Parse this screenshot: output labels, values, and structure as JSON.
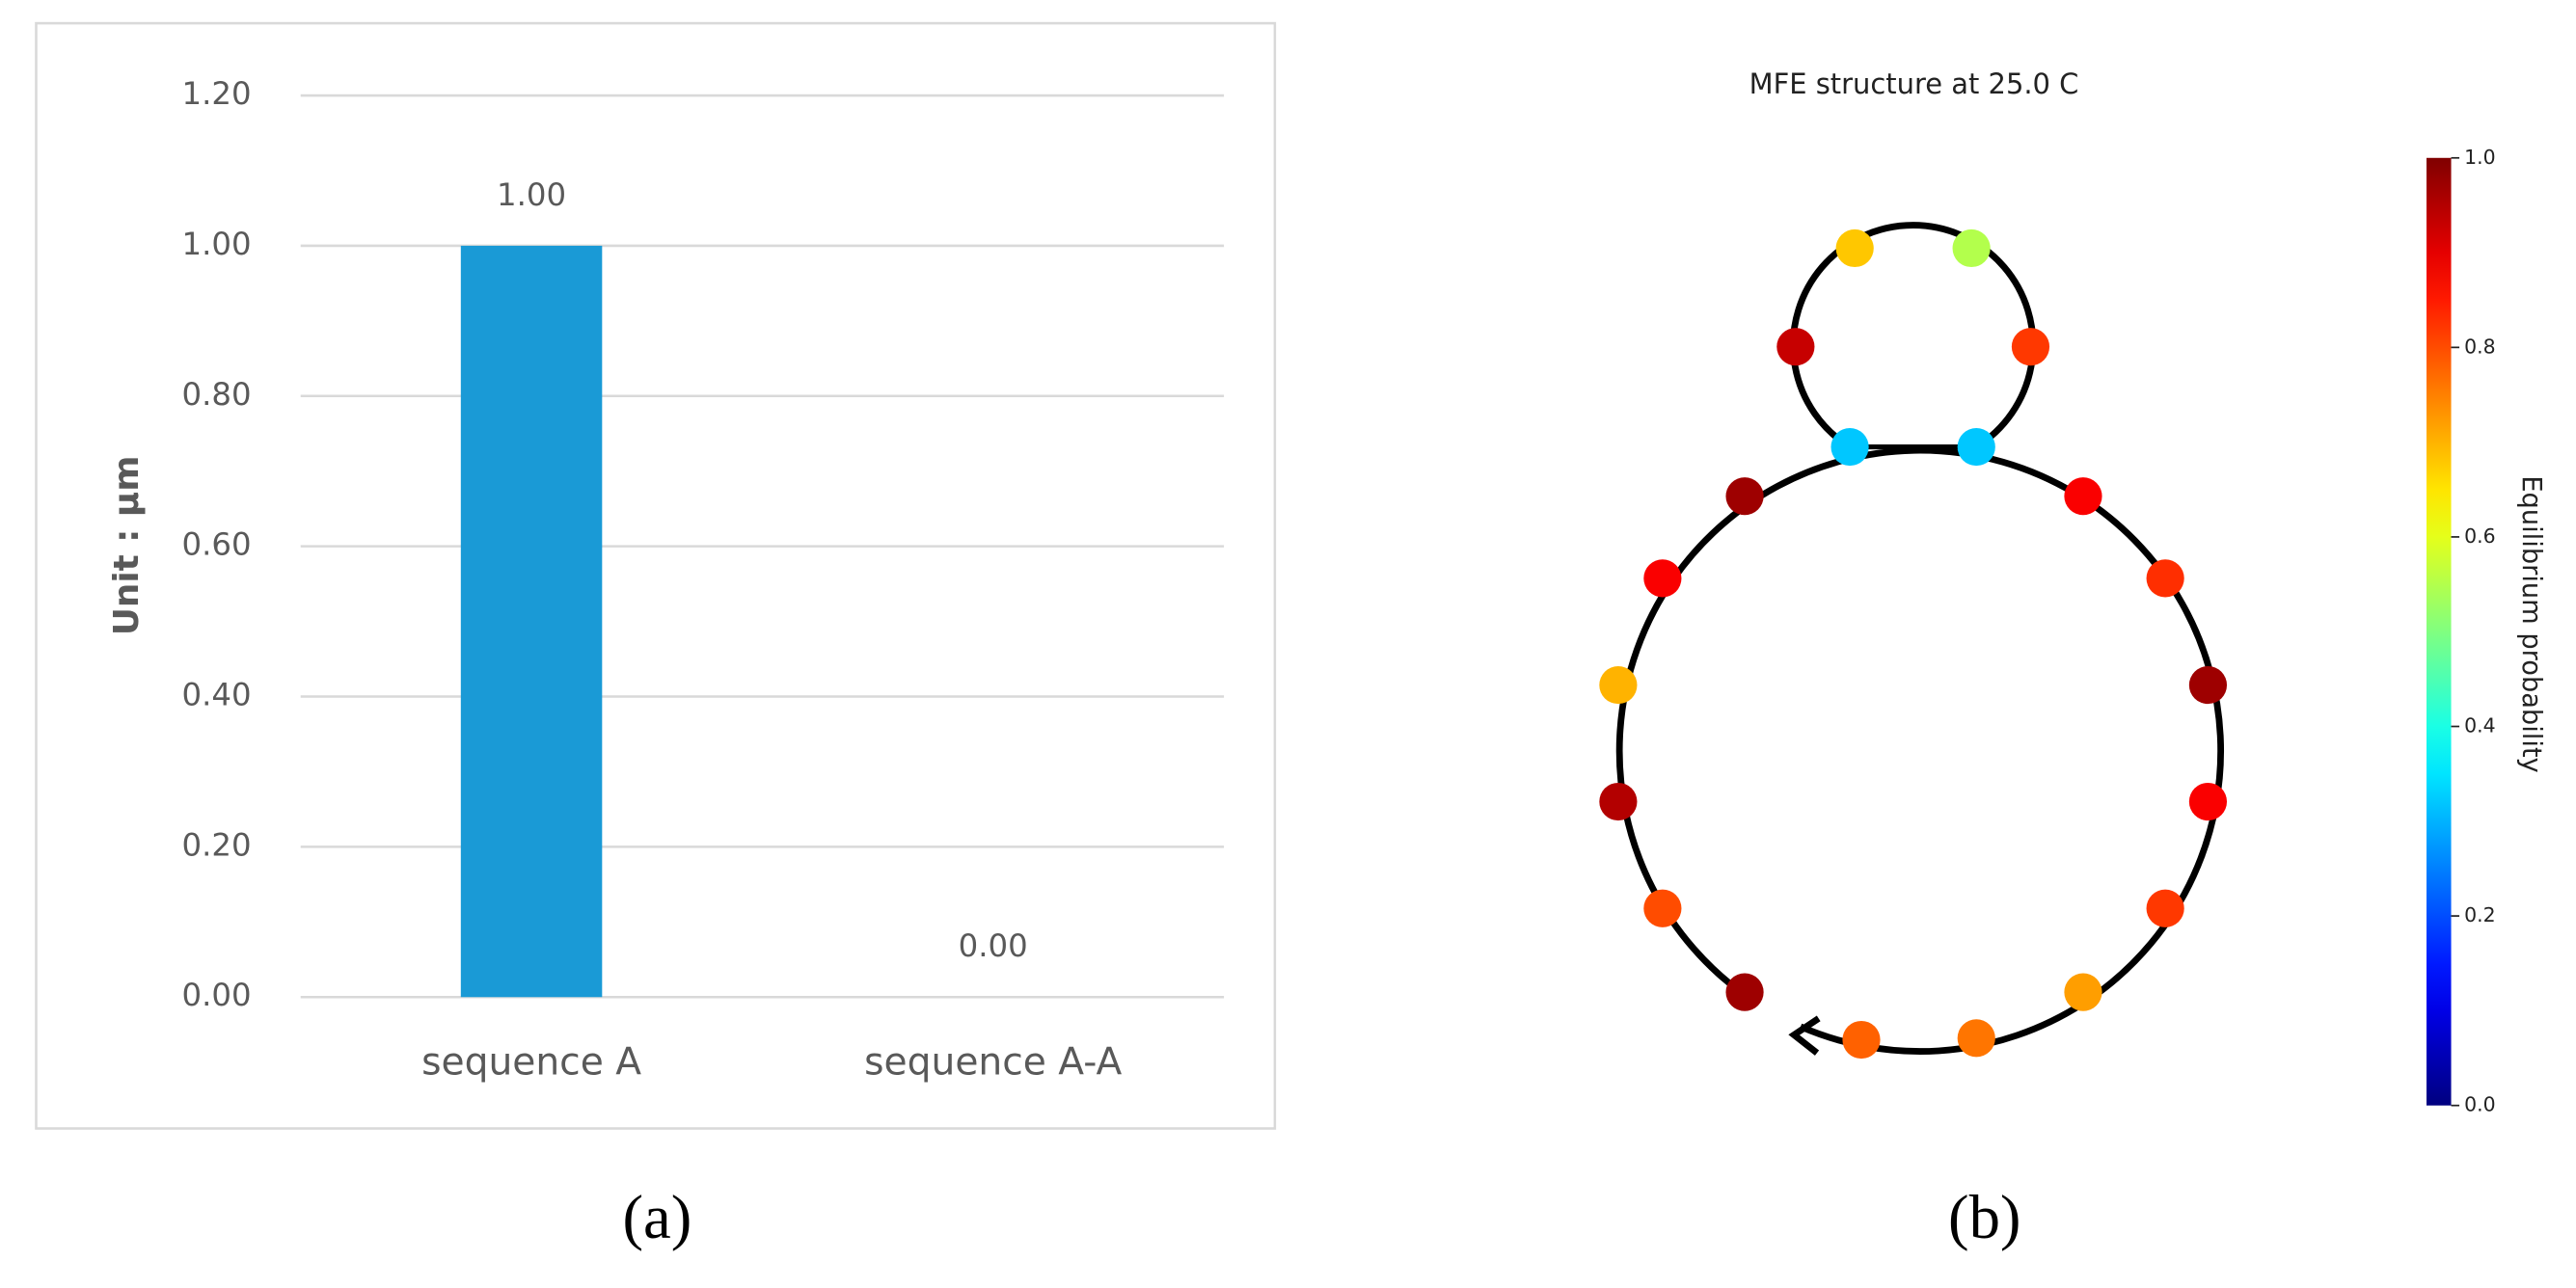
{
  "chart_data": [
    {
      "type": "bar",
      "ylabel": "Unit : μm",
      "categories": [
        "sequence A",
        "sequence A-A"
      ],
      "values": [
        1,
        0
      ],
      "value_labels": [
        "1.00",
        "0.00"
      ],
      "color": "#1a9ad6",
      "ylim": [
        0,
        1.2
      ],
      "yticks": [
        {
          "value": 0,
          "label": "0.00"
        },
        {
          "value": 0.2,
          "label": "0.20"
        },
        {
          "value": 0.4,
          "label": "0.40"
        },
        {
          "value": 0.6,
          "label": "0.60"
        },
        {
          "value": 0.8,
          "label": "0.80"
        },
        {
          "value": 1,
          "label": "1.00"
        },
        {
          "value": 1.2,
          "label": "1.20"
        }
      ],
      "grid": true
    },
    {
      "type": "structure",
      "title": "MFE structure at 25.0 C",
      "values": [
        0.97,
        0.8,
        0.95,
        0.7,
        0.88,
        0.97,
        0.32,
        0.93,
        0.68,
        0.55,
        0.82,
        0.32,
        0.88,
        0.83,
        0.97,
        0.88,
        0.82,
        0.72,
        0.76,
        0.78
      ],
      "colormap": "jet",
      "colorbar_label": "Equilibrium probability",
      "clim": [
        0,
        1
      ],
      "cticks": [
        {
          "value": 0,
          "label": "0.0"
        },
        {
          "value": 0.2,
          "label": "0.2"
        },
        {
          "value": 0.4,
          "label": "0.4"
        },
        {
          "value": 0.6,
          "label": "0.6"
        },
        {
          "value": 0.8,
          "label": "0.8"
        },
        {
          "value": 1,
          "label": "1.0"
        }
      ]
    }
  ],
  "panel_labels": [
    "(a)",
    "(b)"
  ]
}
